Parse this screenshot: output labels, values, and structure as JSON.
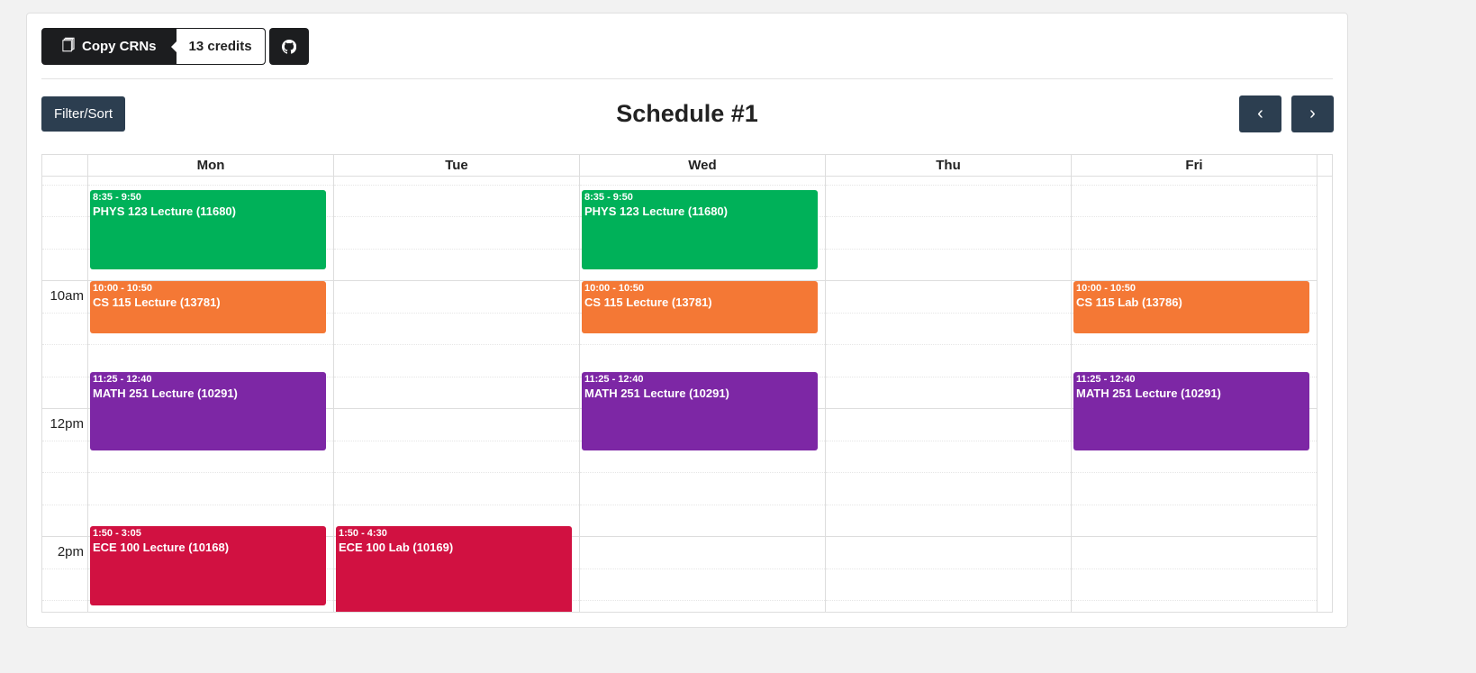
{
  "toolbar": {
    "copy_label": "Copy CRNs",
    "credits": "13 credits",
    "filter_label": "Filter/Sort"
  },
  "title": "Schedule #1",
  "days": [
    "Mon",
    "Tue",
    "Wed",
    "Thu",
    "Fri"
  ],
  "time_labels": [
    {
      "label": "10am",
      "hour": 10
    },
    {
      "label": "12pm",
      "hour": 12
    },
    {
      "label": "2pm",
      "hour": 14
    }
  ],
  "colors": {
    "PHYS 123": "#00b159",
    "CS 115": "#f47835",
    "MATH 251": "#7d27a5",
    "ECE 100": "#d11141",
    "button": "#2c3e50"
  },
  "events": [
    {
      "day": 0,
      "time": "8:35 - 9:50",
      "name": "PHYS 123 Lecture (11680)",
      "start": 8.5833,
      "end": 9.8333,
      "color": "#00b159"
    },
    {
      "day": 2,
      "time": "8:35 - 9:50",
      "name": "PHYS 123 Lecture (11680)",
      "start": 8.5833,
      "end": 9.8333,
      "color": "#00b159"
    },
    {
      "day": 0,
      "time": "10:00 - 10:50",
      "name": "CS 115 Lecture (13781)",
      "start": 10,
      "end": 10.8333,
      "color": "#f47835"
    },
    {
      "day": 2,
      "time": "10:00 - 10:50",
      "name": "CS 115 Lecture (13781)",
      "start": 10,
      "end": 10.8333,
      "color": "#f47835"
    },
    {
      "day": 4,
      "time": "10:00 - 10:50",
      "name": "CS 115 Lab (13786)",
      "start": 10,
      "end": 10.8333,
      "color": "#f47835"
    },
    {
      "day": 0,
      "time": "11:25 - 12:40",
      "name": "MATH 251 Lecture (10291)",
      "start": 11.4167,
      "end": 12.6667,
      "color": "#7d27a5"
    },
    {
      "day": 2,
      "time": "11:25 - 12:40",
      "name": "MATH 251 Lecture (10291)",
      "start": 11.4167,
      "end": 12.6667,
      "color": "#7d27a5"
    },
    {
      "day": 4,
      "time": "11:25 - 12:40",
      "name": "MATH 251 Lecture (10291)",
      "start": 11.4167,
      "end": 12.6667,
      "color": "#7d27a5"
    },
    {
      "day": 0,
      "time": "1:50 - 3:05",
      "name": "ECE 100 Lecture (10168)",
      "start": 13.8333,
      "end": 15.0833,
      "color": "#d11141"
    },
    {
      "day": 1,
      "time": "1:50 - 4:30",
      "name": "ECE 100 Lab (10169)",
      "start": 13.8333,
      "end": 16.5,
      "color": "#d11141"
    }
  ]
}
